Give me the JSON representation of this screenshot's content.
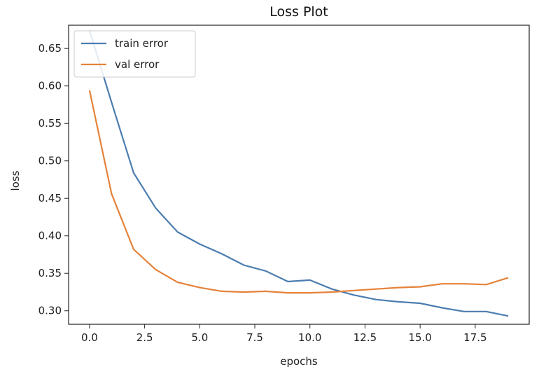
{
  "chart_data": {
    "type": "line",
    "title": "Loss Plot",
    "xlabel": "epochs",
    "ylabel": "loss",
    "xlim": [
      -0.95,
      19.95
    ],
    "ylim": [
      0.282,
      0.681
    ],
    "xticks": [
      0.0,
      2.5,
      5.0,
      7.5,
      10.0,
      12.5,
      15.0,
      17.5
    ],
    "xtick_labels": [
      "0.0",
      "2.5",
      "5.0",
      "7.5",
      "10.0",
      "12.5",
      "15.0",
      "17.5"
    ],
    "yticks": [
      0.3,
      0.35,
      0.4,
      0.45,
      0.5,
      0.55,
      0.6,
      0.65
    ],
    "ytick_labels": [
      "0.30",
      "0.35",
      "0.40",
      "0.45",
      "0.50",
      "0.55",
      "0.60",
      "0.65"
    ],
    "grid": false,
    "legend_position": "top-left",
    "x": [
      0,
      1,
      2,
      3,
      4,
      5,
      6,
      7,
      8,
      9,
      10,
      11,
      12,
      13,
      14,
      15,
      16,
      17,
      18,
      19
    ],
    "series": [
      {
        "name": "train error",
        "color": "#4c7db0",
        "values": [
          0.674,
          0.578,
          0.484,
          0.437,
          0.405,
          0.389,
          0.376,
          0.361,
          0.353,
          0.339,
          0.341,
          0.329,
          0.321,
          0.315,
          0.312,
          0.31,
          0.304,
          0.299,
          0.299,
          0.293
        ]
      },
      {
        "name": "val error",
        "color": "#e5823a",
        "values": [
          0.594,
          0.456,
          0.382,
          0.355,
          0.338,
          0.331,
          0.326,
          0.325,
          0.326,
          0.324,
          0.324,
          0.325,
          0.327,
          0.329,
          0.331,
          0.332,
          0.336,
          0.336,
          0.335,
          0.344
        ]
      }
    ]
  }
}
